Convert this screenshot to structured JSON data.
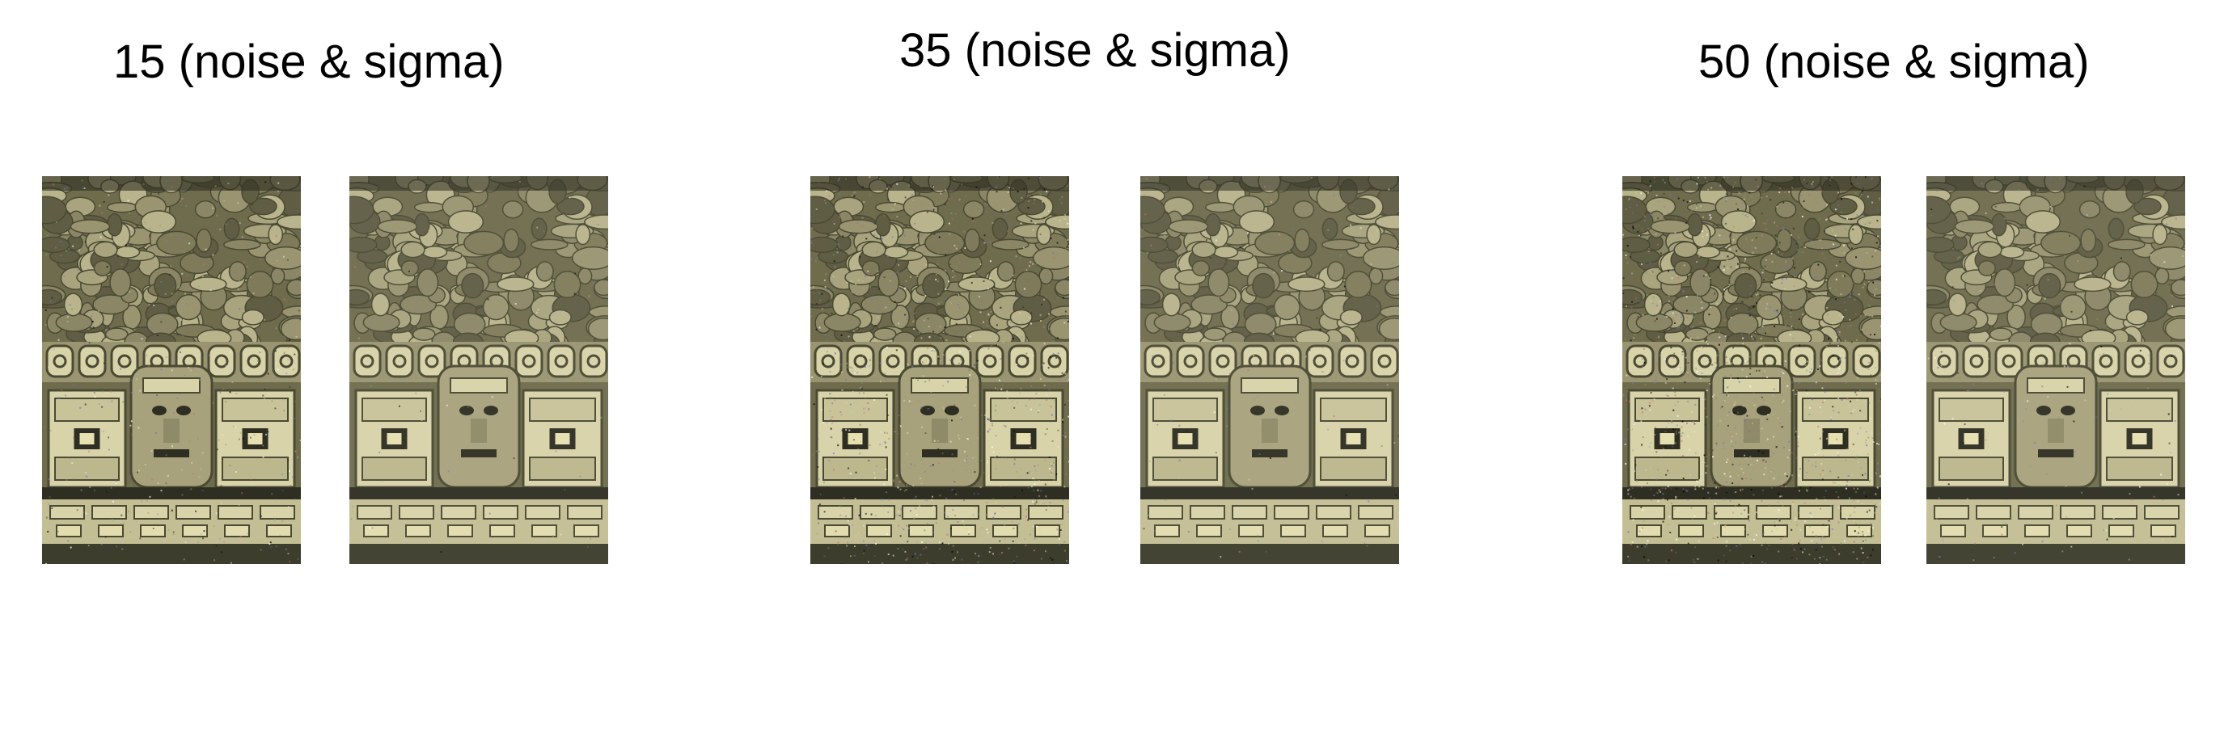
{
  "groups": [
    {
      "title": "15 (noise & sigma)",
      "noise_level": 15,
      "images": [
        {
          "role": "noisy"
        },
        {
          "role": "denoised"
        }
      ]
    },
    {
      "title": "35 (noise & sigma)",
      "noise_level": 35,
      "images": [
        {
          "role": "noisy"
        },
        {
          "role": "denoised"
        }
      ]
    },
    {
      "title": "50 (noise & sigma)",
      "noise_level": 50,
      "images": [
        {
          "role": "noisy"
        },
        {
          "role": "denoised"
        }
      ]
    }
  ],
  "colors": {
    "stone_light": "#d8d3a8",
    "stone_mid": "#9a9470",
    "stone_dark": "#4a4a34",
    "shadow": "#2e2f22",
    "background": "#ffffff"
  }
}
